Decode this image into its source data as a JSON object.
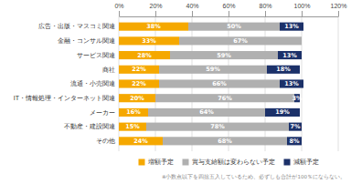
{
  "chart_data": {
    "type": "bar",
    "orientation": "horizontal",
    "stacked": true,
    "categories": [
      "広告・出版・マスコミ関連",
      "金融・コンサル関連",
      "サービス関連",
      "商社",
      "流通・小売関連",
      "IT・情報処理・インターネット関連",
      "メーカー",
      "不動産・建設関連",
      "その他"
    ],
    "series": [
      {
        "name": "増額予定",
        "color": "#F5A800",
        "values": [
          38,
          33,
          28,
          22,
          22,
          20,
          16,
          15,
          24
        ],
        "value_labels": [
          "38%",
          "33%",
          "28%",
          "22%",
          "22%",
          "20%",
          "16%",
          "15%",
          "24%"
        ]
      },
      {
        "name": "賞与支給額は変わらない予定",
        "color": "#B0B0B0",
        "values": [
          50,
          67,
          59,
          59,
          66,
          76,
          64,
          78,
          68
        ],
        "value_labels": [
          "50%",
          "67%",
          "59%",
          "59%",
          "66%",
          "76%",
          "64%",
          "78%",
          "68%"
        ]
      },
      {
        "name": "減額予定",
        "color": "#1C3169",
        "values": [
          13,
          0,
          13,
          18,
          13,
          3,
          19,
          7,
          8
        ],
        "value_labels": [
          "13%",
          null,
          "13%",
          "18%",
          "13%",
          "3%",
          "19%",
          "7%",
          "8%"
        ]
      }
    ],
    "xlim": [
      0,
      120
    ],
    "xticks": [
      {
        "value": 0,
        "label": "0%"
      },
      {
        "value": 20,
        "label": "20%"
      },
      {
        "value": 40,
        "label": "40%"
      },
      {
        "value": 60,
        "label": "60%"
      },
      {
        "value": 80,
        "label": "80%"
      },
      {
        "value": 100,
        "label": "100%"
      },
      {
        "value": 120,
        "label": "120%"
      }
    ],
    "grid": true,
    "data_labels": true,
    "legend": "bottom",
    "annotations": [
      "※小数点以下を四捨五入しているため、必ずしも合計が100％にならない。"
    ]
  }
}
